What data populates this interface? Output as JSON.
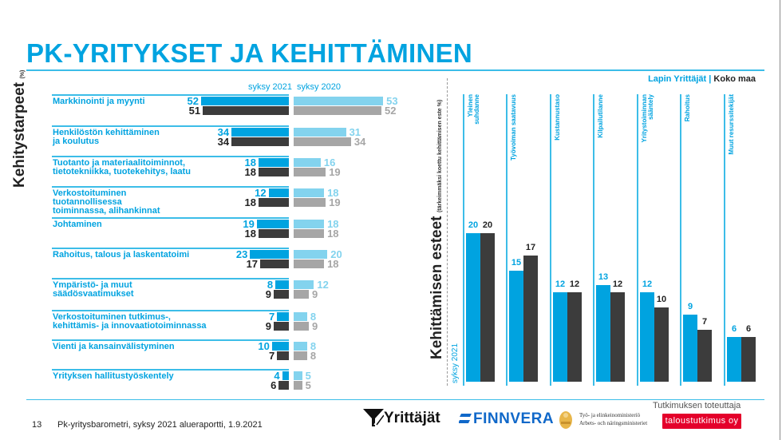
{
  "title": "PK-YRITYKSET JA KEHITTÄMINEN",
  "colors": {
    "accent": "#00a3e0",
    "bar_2021_regional": "#00a3e0",
    "bar_2021_national": "#3c3c3c",
    "bar_2020_regional": "#83d3ee",
    "bar_2020_national": "#a6a6a6",
    "badge": "#e4002b"
  },
  "chart_data": [
    {
      "type": "bar",
      "orientation": "horizontal",
      "title": "Kehitystarpeet",
      "title_unit": "(%)",
      "column_headers": [
        "syksy 2021",
        "syksy 2020"
      ],
      "categories": [
        "Markkinointi ja myynti",
        "Henkilöstön kehittäminen ja koulutus",
        "Tuotanto ja materiaalitoiminnot, tietotekniikka, tuotekehitys, laatu",
        "Verkostoituminen tuotannollisessa toiminnassa, alihankinnat",
        "Johtaminen",
        "Rahoitus, talous ja laskentatoimi",
        "Ympäristö- ja muut säädösvaatimukset",
        "Verkostoituminen tutkimus-, kehittämis- ja innovaatiotoiminnassa",
        "Vienti ja kansainvälistyminen",
        "Yrityksen hallitustyöskentely"
      ],
      "category_lines": [
        [
          "Markkinointi ja myynti"
        ],
        [
          "Henkilöstön kehittäminen",
          "ja koulutus"
        ],
        [
          "Tuotanto ja materiaalitoiminnot,",
          "tietotekniikka, tuotekehitys, laatu"
        ],
        [
          "Verkostoituminen",
          "tuotannollisessa",
          "toiminnassa, alihankinnat"
        ],
        [
          "Johtaminen"
        ],
        [
          "Rahoitus, talous ja laskentatoimi"
        ],
        [
          "Ympäristö- ja muut",
          "säädösvaatimukset"
        ],
        [
          "Verkostoituminen tutkimus-,",
          "kehittämis- ja innovaatiotoiminnassa"
        ],
        [
          "Vienti ja kansainvälistyminen"
        ],
        [
          "Yrityksen hallitustyöskentely"
        ]
      ],
      "series": [
        {
          "name": "Lapin Yrittäjät syksy 2021",
          "values": [
            52,
            34,
            18,
            12,
            19,
            23,
            8,
            7,
            10,
            4
          ]
        },
        {
          "name": "Koko maa syksy 2021",
          "values": [
            51,
            34,
            18,
            18,
            18,
            17,
            9,
            9,
            7,
            6
          ]
        },
        {
          "name": "Lapin Yrittäjät syksy 2020",
          "values": [
            53,
            31,
            16,
            18,
            18,
            20,
            12,
            8,
            8,
            5
          ]
        },
        {
          "name": "Koko maa syksy 2020",
          "values": [
            52,
            34,
            19,
            19,
            18,
            18,
            9,
            9,
            8,
            5
          ]
        }
      ],
      "xlabel": "",
      "ylabel": "",
      "xlim": [
        0,
        55
      ]
    },
    {
      "type": "bar",
      "orientation": "vertical",
      "title": "Kehittämisen esteet",
      "subtitle": "(tärkeimmäksi koettu kehittämisen este %)",
      "period_label": "syksy 2021",
      "legend": [
        "Lapin Yrittäjät",
        "Koko maa"
      ],
      "legend_separator": "|",
      "legend_position": "top-right",
      "categories": [
        "Yleinen suhdanne",
        "Työvoiman saatavuus",
        "Kustannustaso",
        "Kilpailutilanne",
        "Yritystoiminnan sääntely",
        "Rahoitus",
        "Muut resurssitekijät"
      ],
      "category_lines": [
        [
          "Yleinen",
          "suhdanne"
        ],
        [
          "Työvoiman saatavuus"
        ],
        [
          "Kustannustaso"
        ],
        [
          "Kilpailutilanne"
        ],
        [
          "Yritystoiminnan",
          "sääntely"
        ],
        [
          "Rahoitus"
        ],
        [
          "Muut resurssitekijät"
        ]
      ],
      "series": [
        {
          "name": "Lapin Yrittäjät",
          "values": [
            20,
            15,
            12,
            13,
            12,
            9,
            6
          ]
        },
        {
          "name": "Koko maa",
          "values": [
            20,
            17,
            12,
            12,
            10,
            7,
            6
          ]
        }
      ],
      "xlabel": "",
      "ylabel": "",
      "ylim": [
        0,
        22
      ]
    }
  ],
  "footer": {
    "page_number": "13",
    "text": "Pk-yritysbarometri, syksy 2021 alueraportti, 1.9.2021",
    "logos": {
      "yrittajat": "Yrittäjät",
      "finnvera": "FINNVERA",
      "tem_line1": "Työ- ja elinkeinoministeriö",
      "tem_line2": "Arbets- och näringsministeriet"
    },
    "producer_label": "Tutkimuksen toteuttaja",
    "producer_name": "taloustutkimus oy"
  }
}
